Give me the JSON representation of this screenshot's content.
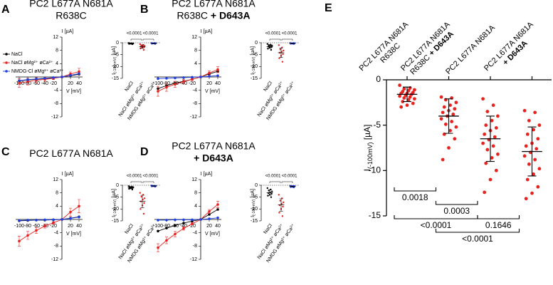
{
  "chart_data": [
    {
      "type": "line",
      "panel": "A",
      "title": [
        [
          {
            "text": "PC2 L677A N681A"
          }
        ],
        [
          {
            "text": "R638C"
          }
        ]
      ],
      "x": [
        -100,
        -80,
        -60,
        -40,
        -20,
        0,
        20,
        40
      ],
      "xlim": [
        -105,
        45
      ],
      "ylim": [
        -12,
        12
      ],
      "xticks": [
        -100,
        -80,
        -60,
        -40,
        -20,
        20,
        40
      ],
      "yticks": [
        -12,
        -8,
        -4,
        4,
        8,
        12
      ],
      "x_label": "V [mV]",
      "y_label": "I [µA]",
      "legend": "left",
      "series": [
        {
          "name": "NaCl",
          "color": "#000000",
          "values": [
            -1.2,
            -0.9,
            -0.7,
            -0.5,
            -0.3,
            0,
            0.4,
            0.8
          ]
        },
        {
          "name": "NaCl øMg²⁺ øCa²⁺",
          "color": "#e8221f",
          "values": [
            -1.8,
            -1.4,
            -1.0,
            -0.7,
            -0.4,
            0,
            0.9,
            1.6
          ],
          "errors": [
            1.3,
            1.0,
            0.8,
            0.6,
            0.4,
            0.2,
            0.6,
            1.0
          ]
        },
        {
          "name": "NMDG-Cl øMg²⁺ øCa²⁺",
          "color": "#1f3fe0",
          "values": [
            -1.1,
            -0.8,
            -0.6,
            -0.4,
            -0.2,
            0,
            0.5,
            1.0
          ]
        }
      ]
    },
    {
      "type": "strip",
      "categories": [
        "NaCl",
        "NaCl øMg²⁺ øCa²⁺",
        "NMDG øMg²⁺ øCa²⁺"
      ],
      "y_label": "I",
      "y_label_sub": "(-100 mV)",
      "y_label_unit": "[µA]",
      "ylim": [
        -15,
        0
      ],
      "yticks": [
        -15,
        -10,
        -5,
        0
      ],
      "series": [
        {
          "color": "#000000",
          "values": [
            -0.1,
            -0.2,
            -0.2,
            -0.3,
            -0.3,
            -0.3,
            -0.4,
            -0.4,
            -0.5,
            -0.6
          ],
          "mean": -0.3,
          "sd": 0.15
        },
        {
          "color": "#e8221f",
          "values": [
            -0.6,
            -0.9,
            -1.1,
            -1.3,
            -1.5,
            -1.6,
            -1.8,
            -2.0,
            -2.4,
            -3.0
          ],
          "mean": -1.6,
          "sd": 0.7
        },
        {
          "color": "#1f3fe0",
          "values": [
            -0.1,
            -0.1,
            -0.2,
            -0.2,
            -0.2,
            -0.3,
            -0.3,
            -0.3,
            -0.4,
            -0.5
          ],
          "mean": -0.25,
          "sd": 0.12
        }
      ],
      "comparisons": [
        {
          "groups": [
            0,
            1
          ],
          "label": "<0.0001"
        },
        {
          "groups": [
            1,
            2
          ],
          "label": "<0.0001"
        }
      ]
    },
    {
      "type": "line",
      "panel": "B",
      "title": [
        [
          {
            "text": "PC2 L677A N681A"
          }
        ],
        [
          {
            "text": "R638C "
          },
          {
            "text": "+ D643A",
            "bold": true
          }
        ]
      ],
      "x": [
        -100,
        -80,
        -60,
        -40,
        -20,
        0,
        20,
        40
      ],
      "xlim": [
        -105,
        45
      ],
      "ylim": [
        -12,
        12
      ],
      "xticks": [
        -100,
        -80,
        -60,
        -40,
        -20,
        20,
        40
      ],
      "yticks": [
        -12,
        -8,
        -4,
        4,
        8,
        12
      ],
      "x_label": "V [mV]",
      "y_label": "I [µA]",
      "series": [
        {
          "color": "#000000",
          "values": [
            -3.5,
            -2.6,
            -1.9,
            -1.3,
            -0.7,
            0,
            0.9,
            1.7
          ]
        },
        {
          "color": "#e8221f",
          "values": [
            -4.3,
            -3.1,
            -2.2,
            -1.4,
            -0.7,
            0,
            1.2,
            2.2
          ],
          "errors": [
            1.5,
            1.2,
            0.9,
            0.6,
            0.4,
            0.2,
            0.6,
            0.9
          ]
        },
        {
          "color": "#1f3fe0",
          "values": [
            -0.5,
            -0.4,
            -0.3,
            -0.2,
            -0.1,
            0,
            0.2,
            0.4
          ]
        }
      ]
    },
    {
      "type": "strip",
      "categories": [
        "NaCl",
        "NaCl øMg²⁺ øCa²⁺",
        "NMDG øMg²⁺ øCa²⁺"
      ],
      "y_label": "I",
      "y_label_sub": "(-100 mV)",
      "y_label_unit": "[µA]",
      "ylim": [
        -15,
        0
      ],
      "yticks": [
        -15,
        -10,
        -5,
        0
      ],
      "series": [
        {
          "color": "#000000",
          "values": [
            -0.5,
            -0.8,
            -1.0,
            -1.2,
            -1.4,
            -1.6,
            -1.8,
            -2.0,
            -2.5,
            -3.0
          ],
          "mean": -1.6,
          "sd": 0.75
        },
        {
          "color": "#e8221f",
          "values": [
            -1.0,
            -2.0,
            -2.8,
            -3.3,
            -3.8,
            -4.2,
            -4.8,
            -5.5,
            -6.5,
            -8.0
          ],
          "mean": -4.2,
          "sd": 2.0
        },
        {
          "color": "#1f3fe0",
          "values": [
            -0.1,
            -0.1,
            -0.2,
            -0.2,
            -0.3,
            -0.3,
            -0.3,
            -0.4,
            -0.4,
            -0.5
          ],
          "mean": -0.3,
          "sd": 0.13
        }
      ],
      "comparisons": [
        {
          "groups": [
            0,
            1
          ],
          "label": "<0.0001"
        },
        {
          "groups": [
            1,
            2
          ],
          "label": "<0.0001"
        }
      ]
    },
    {
      "type": "line",
      "panel": "C",
      "title": [
        [
          {
            "text": "PC2 L677A N681A"
          }
        ]
      ],
      "x": [
        -100,
        -80,
        -60,
        -40,
        -20,
        0,
        20,
        40
      ],
      "xlim": [
        -105,
        45
      ],
      "ylim": [
        -12,
        12
      ],
      "xticks": [
        -100,
        -80,
        -60,
        -40,
        -20,
        20,
        40
      ],
      "yticks": [
        -12,
        -8,
        -4,
        4,
        8,
        12
      ],
      "x_label": "V [mV]",
      "y_label": "I [µA]",
      "series": [
        {
          "color": "#000000",
          "values": [
            -0.4,
            -0.3,
            -0.2,
            -0.2,
            -0.1,
            0,
            0.4,
            0.8
          ]
        },
        {
          "color": "#e8221f",
          "values": [
            -6.5,
            -4.8,
            -3.3,
            -2.0,
            -1.0,
            0,
            2.2,
            4.0
          ],
          "errors": [
            1.5,
            1.2,
            0.9,
            0.6,
            0.3,
            0.2,
            1.2,
            2.0
          ]
        },
        {
          "color": "#1f3fe0",
          "values": [
            -0.3,
            -0.2,
            -0.2,
            -0.1,
            -0.1,
            0,
            0.3,
            0.7
          ]
        }
      ]
    },
    {
      "type": "strip",
      "categories": [
        "NaCl",
        "NaCl øMg²⁺ øCa²⁺",
        "NMDG øMg²⁺ øCa²⁺"
      ],
      "y_label": "I",
      "y_label_sub": "(-100 mV)",
      "y_label_unit": "[µA]",
      "ylim": [
        -15,
        0
      ],
      "yticks": [
        -15,
        -10,
        -5,
        0
      ],
      "series": [
        {
          "color": "#000000",
          "values": [
            -0.4,
            -0.6,
            -0.7,
            -0.8,
            -0.9,
            -1.0,
            -1.1,
            -1.3,
            -1.5,
            -1.8
          ],
          "mean": -1.0,
          "sd": 0.4
        },
        {
          "color": "#e8221f",
          "values": [
            -3.2,
            -4.0,
            -4.8,
            -5.5,
            -6.0,
            -6.8,
            -7.5,
            -8.5,
            -10.0,
            -12.0
          ],
          "mean": -6.8,
          "sd": 2.6
        },
        {
          "color": "#1f3fe0",
          "values": [
            -0.1,
            -0.2,
            -0.2,
            -0.3,
            -0.3,
            -0.3,
            -0.4,
            -0.4,
            -0.5,
            -0.6
          ],
          "mean": -0.3,
          "sd": 0.15
        }
      ],
      "comparisons": [
        {
          "groups": [
            0,
            1
          ],
          "label": "<0.0001"
        },
        {
          "groups": [
            1,
            2
          ],
          "label": "<0.0001"
        }
      ]
    },
    {
      "type": "line",
      "panel": "D",
      "title": [
        [
          {
            "text": "PC2 L677A N681A"
          }
        ],
        [
          {
            "text": "+ D643A",
            "bold": true
          }
        ]
      ],
      "x": [
        -100,
        -80,
        -60,
        -40,
        -20,
        0,
        20,
        40
      ],
      "xlim": [
        -105,
        45
      ],
      "ylim": [
        -12,
        12
      ],
      "xticks": [
        -100,
        -80,
        -60,
        -40,
        -20,
        20,
        40
      ],
      "yticks": [
        -12,
        -8,
        -4,
        4,
        8,
        12
      ],
      "x_label": "V [mV]",
      "y_label": "I [µA]",
      "series": [
        {
          "color": "#000000",
          "values": [
            -3.5,
            -2.6,
            -1.8,
            -1.1,
            -0.5,
            0,
            1.5,
            3.0
          ]
        },
        {
          "color": "#e8221f",
          "values": [
            -8.5,
            -6.3,
            -4.4,
            -2.7,
            -1.3,
            0,
            2.4,
            4.5
          ],
          "errors": [
            1.2,
            1.0,
            0.8,
            0.5,
            0.3,
            0.2,
            0.6,
            1.0
          ]
        },
        {
          "color": "#1f3fe0",
          "values": [
            -0.2,
            -0.2,
            -0.1,
            -0.1,
            -0.1,
            0,
            0.2,
            0.5
          ]
        }
      ]
    },
    {
      "type": "strip",
      "categories": [
        "NaCl",
        "NaCl øMg²⁺ øCa²⁺",
        "NMDG øMg²⁺ øCa²⁺"
      ],
      "y_label": "I",
      "y_label_sub": "(-100 mV)",
      "y_label_unit": "[µA]",
      "ylim": [
        -15,
        0
      ],
      "yticks": [
        -15,
        -10,
        -5,
        0
      ],
      "series": [
        {
          "color": "#000000",
          "values": [
            -1.2,
            -1.8,
            -2.2,
            -2.6,
            -3.0,
            -3.3,
            -3.6,
            -4.0,
            -4.4,
            -5.0
          ],
          "mean": -3.1,
          "sd": 1.1
        },
        {
          "color": "#e8221f",
          "values": [
            -4.0,
            -5.5,
            -6.5,
            -7.2,
            -7.8,
            -8.4,
            -9.0,
            -10.0,
            -11.5,
            -13.0
          ],
          "mean": -8.3,
          "sd": 2.6
        },
        {
          "color": "#1f3fe0",
          "values": [
            -0.2,
            -0.3,
            -0.3,
            -0.4,
            -0.5,
            -0.5,
            -0.6,
            -0.7,
            -0.8,
            -0.9
          ],
          "mean": -0.5,
          "sd": 0.2
        }
      ],
      "comparisons": [
        {
          "groups": [
            0,
            1
          ],
          "label": "<0.0001"
        },
        {
          "groups": [
            1,
            2
          ],
          "label": "<0.0001"
        }
      ]
    },
    {
      "type": "strip",
      "panel": "E",
      "categories": [
        [
          [
            {
              "text": "PC2 L677A N681A"
            }
          ],
          [
            {
              "text": "R638C"
            }
          ]
        ],
        [
          [
            {
              "text": "PC2 L677A N681A"
            }
          ],
          [
            {
              "text": "R638C "
            },
            {
              "text": "+ D643A",
              "bold": true
            }
          ]
        ],
        [
          [
            {
              "text": "PC2 L677A N681A"
            }
          ]
        ],
        [
          [
            {
              "text": "PC2 L677A N681A"
            }
          ],
          [
            {
              "text": "+ D643A",
              "bold": true
            }
          ]
        ]
      ],
      "y_label": "I",
      "y_label_sub": "(-100mV)",
      "y_label_unit": "[µA]",
      "ylim": [
        -15,
        0
      ],
      "yticks": [
        -15,
        -10,
        -5,
        0
      ],
      "series": [
        {
          "color": "#e8221f",
          "values": [
            -0.6,
            -0.9,
            -1.0,
            -1.1,
            -1.2,
            -1.3,
            -1.4,
            -1.5,
            -1.5,
            -1.6,
            -1.7,
            -1.8,
            -1.9,
            -2.0,
            -2.1,
            -2.2,
            -2.4,
            -2.6,
            -2.8,
            -3.0
          ],
          "mean": -1.6,
          "sd": 0.8
        },
        {
          "color": "#e8221f",
          "values": [
            -1.9,
            -2.0,
            -2.2,
            -2.5,
            -2.8,
            -3.0,
            -3.2,
            -3.4,
            -3.6,
            -3.8,
            -4.0,
            -4.3,
            -4.6,
            -4.9,
            -5.2,
            -5.6,
            -6.0,
            -6.5,
            -7.5,
            -8.8
          ],
          "mean": -4.0,
          "sd": 1.9
        },
        {
          "color": "#e8221f",
          "values": [
            -2.1,
            -2.8,
            -3.5,
            -4.0,
            -4.5,
            -5.0,
            -5.3,
            -5.6,
            -6.0,
            -6.3,
            -6.6,
            -7.0,
            -7.3,
            -7.7,
            -8.2,
            -8.6,
            -9.2,
            -10.0,
            -11.0,
            -12.4
          ],
          "mean": -6.5,
          "sd": 2.5
        },
        {
          "color": "#e8221f",
          "values": [
            -3.4,
            -3.6,
            -4.5,
            -5.0,
            -5.5,
            -6.0,
            -6.5,
            -7.0,
            -7.3,
            -7.6,
            -8.0,
            -8.4,
            -8.8,
            -9.3,
            -9.8,
            -10.4,
            -11.0,
            -11.8,
            -12.5,
            -13.1
          ],
          "mean": -7.9,
          "sd": 2.7
        }
      ],
      "comparisons": [
        {
          "groups": [
            0,
            1
          ],
          "label": "0.0018"
        },
        {
          "groups": [
            1,
            2
          ],
          "label": "0.0003"
        },
        {
          "groups": [
            0,
            2
          ],
          "label": "<0.0001"
        },
        {
          "groups": [
            2,
            3
          ],
          "label": "0.1646"
        },
        {
          "groups": [
            1,
            3
          ],
          "label": "<0.0001"
        }
      ],
      "comparisons_position": "bottom"
    }
  ]
}
